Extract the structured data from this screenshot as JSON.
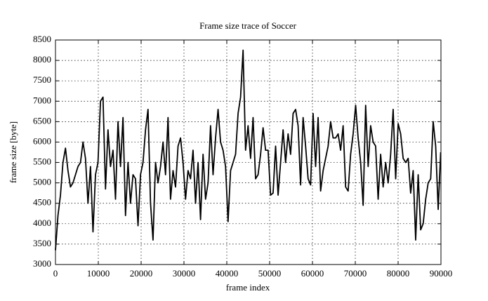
{
  "chart_data": {
    "type": "line",
    "title": "Frame size trace of Soccer",
    "x_label": "frame index",
    "y_label": "frame size [byte]",
    "xlim": [
      0,
      90000
    ],
    "xticks": [
      0,
      10000,
      20000,
      30000,
      40000,
      50000,
      60000,
      70000,
      80000,
      90000
    ],
    "ylim": [
      3000,
      8500
    ],
    "yticks": [
      3000,
      3500,
      4000,
      4500,
      5000,
      5500,
      6000,
      6500,
      7000,
      7500,
      8000,
      8500
    ],
    "grid": true,
    "x": [
      0,
      584,
      1168,
      1752,
      2336,
      2920,
      3504,
      4088,
      4672,
      5256,
      5840,
      6424,
      7008,
      7592,
      8176,
      8760,
      9344,
      9928,
      10512,
      11096,
      11680,
      12264,
      12848,
      13432,
      14016,
      14600,
      15184,
      15768,
      16352,
      16936,
      17520,
      18104,
      18688,
      19272,
      19856,
      20440,
      21024,
      21608,
      22192,
      22776,
      23360,
      23944,
      24528,
      25112,
      25696,
      26280,
      26864,
      27448,
      28032,
      28616,
      29200,
      29784,
      30368,
      30952,
      31536,
      32120,
      32704,
      33288,
      33872,
      34456,
      35040,
      35624,
      36208,
      36792,
      37376,
      37960,
      38544,
      39128,
      39712,
      40296,
      40880,
      41464,
      42048,
      42632,
      43216,
      43800,
      44384,
      44968,
      45552,
      46136,
      46720,
      47304,
      47888,
      48472,
      49056,
      49640,
      50224,
      50808,
      51392,
      51976,
      52560,
      53144,
      53728,
      54312,
      54896,
      55480,
      56064,
      56648,
      57232,
      57816,
      58400,
      58984,
      59568,
      60152,
      60736,
      61320,
      61904,
      62488,
      63072,
      63656,
      64240,
      64824,
      65408,
      65992,
      66576,
      67160,
      67744,
      68328,
      68912,
      69496,
      70080,
      70664,
      71248,
      71832,
      72416,
      73000,
      73584,
      74168,
      74752,
      75336,
      75920,
      76504,
      77088,
      77672,
      78256,
      78840,
      79424,
      80008,
      80592,
      81176,
      81760,
      82344,
      82928,
      83512,
      84096,
      84680,
      85264,
      85848,
      86432,
      87016,
      87600,
      88184,
      88768,
      89352,
      89936
    ],
    "series": [
      {
        "color": "#000000",
        "values": [
          3350,
          4200,
          4700,
          5500,
          5850,
          5300,
          4900,
          5000,
          5200,
          5400,
          5500,
          6000,
          5600,
          4500,
          5400,
          3800,
          5200,
          5500,
          7000,
          7100,
          4850,
          6300,
          5400,
          5800,
          4600,
          6500,
          5400,
          6600,
          4200,
          5500,
          4500,
          5200,
          5100,
          3950,
          5200,
          5500,
          6300,
          6800,
          4500,
          3600,
          5500,
          5000,
          5400,
          6000,
          5200,
          6600,
          4600,
          5300,
          4900,
          5900,
          6100,
          5500,
          4600,
          5300,
          5100,
          5800,
          4500,
          5500,
          4100,
          5700,
          4600,
          5000,
          6400,
          5200,
          6100,
          6800,
          6000,
          5800,
          5400,
          4050,
          5300,
          5500,
          5700,
          6700,
          7100,
          8250,
          5800,
          6400,
          5600,
          6600,
          5100,
          5200,
          5700,
          6350,
          5800,
          5800,
          4700,
          4750,
          5900,
          4700,
          5500,
          6300,
          5500,
          6200,
          5700,
          6700,
          6800,
          6400,
          4950,
          6600,
          5900,
          5100,
          4950,
          6700,
          5400,
          6600,
          4800,
          5300,
          5600,
          5900,
          6500,
          6100,
          6100,
          6200,
          5800,
          6400,
          4900,
          4800,
          5700,
          6200,
          6900,
          6100,
          5500,
          4450,
          6900,
          5400,
          6400,
          6000,
          5900,
          4600,
          5700,
          4900,
          5500,
          5000,
          5700,
          6800,
          5100,
          6450,
          6200,
          5600,
          5500,
          5600,
          4750,
          5300,
          3600,
          5200,
          3850,
          4000,
          4600,
          5000,
          5100,
          6500,
          5900,
          4350,
          5750
        ]
      }
    ]
  }
}
